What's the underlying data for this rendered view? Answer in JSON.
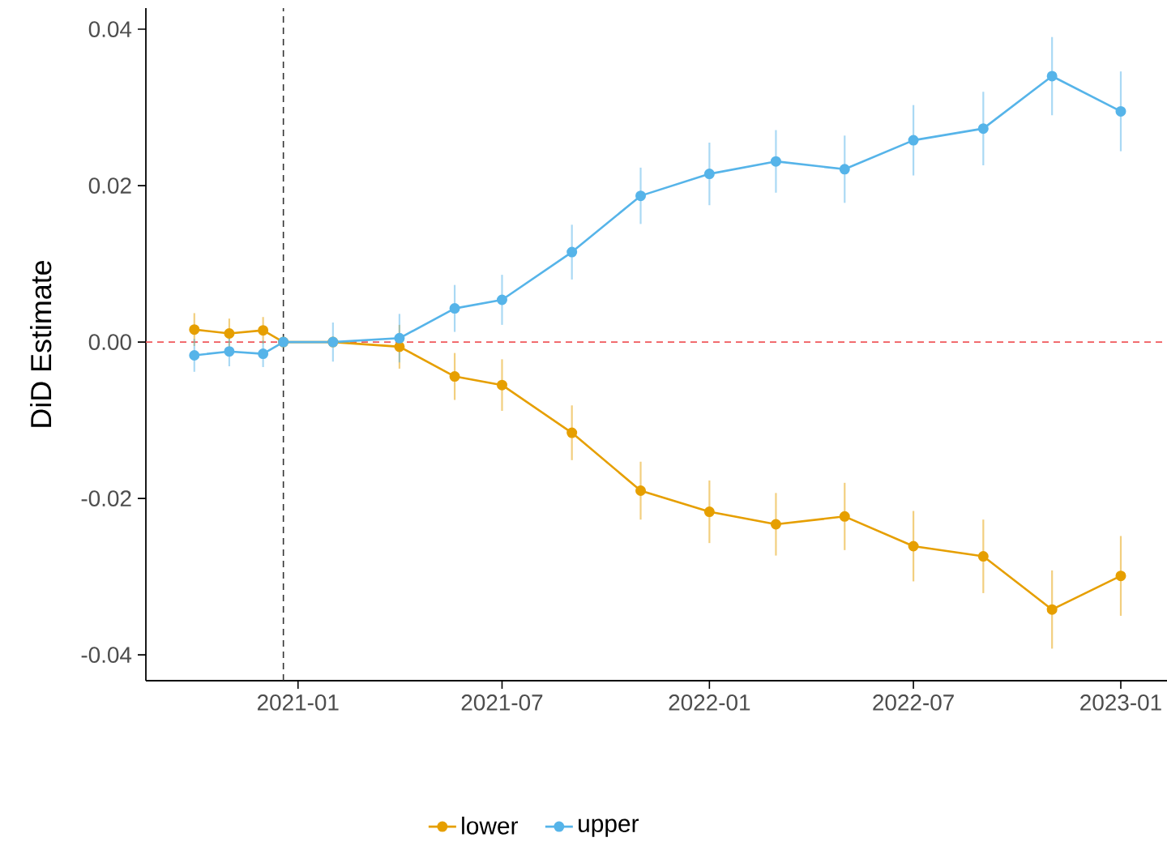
{
  "chart_data": {
    "type": "line",
    "ylabel": "DiD Estimate",
    "x": [
      "2020-10-01",
      "2020-11-01",
      "2020-12-01",
      "2020-12-19",
      "2021-02-01",
      "2021-04-01",
      "2021-05-20",
      "2021-07-01",
      "2021-09-01",
      "2021-11-01",
      "2022-01-01",
      "2022-03-01",
      "2022-05-01",
      "2022-07-01",
      "2022-09-01",
      "2022-11-01",
      "2023-01-01"
    ],
    "series": [
      {
        "name": "lower",
        "color": "#e69f00",
        "values": [
          0.0016,
          0.0011,
          0.0015,
          0,
          0,
          -0.0006,
          -0.0044,
          -0.0055,
          -0.0116,
          -0.019,
          -0.0217,
          -0.0233,
          -0.0223,
          -0.0261,
          -0.0274,
          -0.0342,
          -0.0299
        ],
        "errors": [
          0.0021,
          0.0019,
          0.0017,
          null,
          null,
          0.0028,
          0.003,
          0.0033,
          0.0035,
          0.0037,
          0.004,
          0.004,
          0.0043,
          0.0045,
          0.0047,
          0.005,
          0.0051
        ]
      },
      {
        "name": "upper",
        "color": "#56b4e9",
        "values": [
          -0.0017,
          -0.0012,
          -0.0015,
          0,
          0,
          0.0005,
          0.0043,
          0.0054,
          0.0115,
          0.0187,
          0.0215,
          0.0231,
          0.0221,
          0.0258,
          0.0273,
          0.034,
          0.0295
        ],
        "errors": [
          0.0021,
          0.0019,
          0.0017,
          null,
          0.0025,
          0.0031,
          0.003,
          0.0032,
          0.0035,
          0.0036,
          0.004,
          0.004,
          0.0043,
          0.0045,
          0.0047,
          0.005,
          0.0051
        ]
      }
    ],
    "xlim": [
      "2020-08-19",
      "2023-02-11"
    ],
    "xticks": [
      "2021-01",
      "2021-07",
      "2022-01",
      "2022-07",
      "2023-01"
    ],
    "ylim": [
      -0.0433,
      0.0427
    ],
    "yticks": [
      -0.04,
      -0.02,
      {
        "value": 0,
        "label": "0.00"
      },
      0.02,
      0.04
    ],
    "ref_lines": [
      {
        "axis": "y",
        "value": 0,
        "color": "#f0585b",
        "line_style": "dashed"
      },
      {
        "axis": "x",
        "value": "2020-12-19",
        "color": "#333333",
        "line_style": "dashed"
      }
    ],
    "marker": "circle",
    "line_style": "solid",
    "legend": "bottom"
  }
}
